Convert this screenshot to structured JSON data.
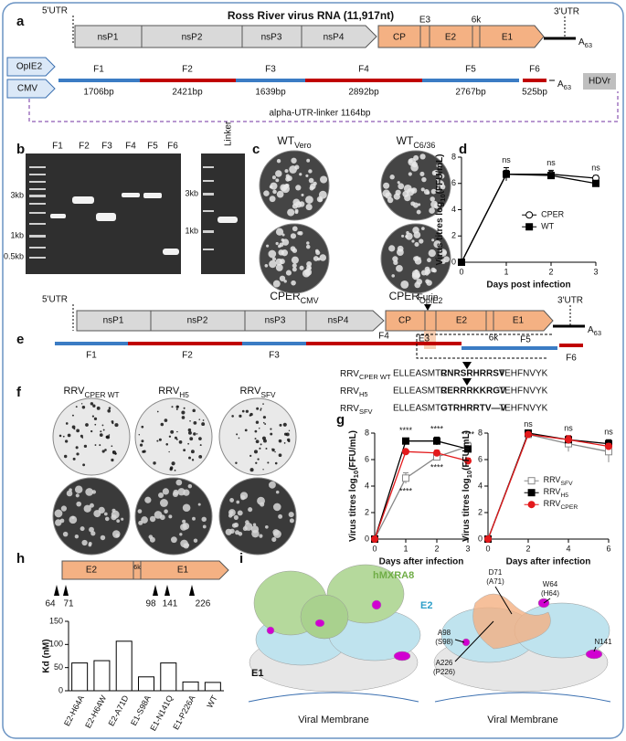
{
  "figure": {
    "panel_labels": [
      "a",
      "b",
      "c",
      "d",
      "e",
      "f",
      "g",
      "h",
      "i"
    ],
    "a": {
      "title": "Ross River virus RNA (11,917nt)",
      "utr5": "5'UTR",
      "utr3": "3'UTR",
      "genes": [
        "nsP1",
        "nsP2",
        "nsP3",
        "nsP4",
        "CP",
        "E3",
        "E2",
        "6k",
        "E1"
      ],
      "polyA": {
        "main": "A",
        "sub": "63"
      },
      "promoters": [
        "OpIE2",
        "CMV"
      ],
      "fragments": [
        {
          "name": "F1",
          "size": "1706bp"
        },
        {
          "name": "F2",
          "size": "2421bp"
        },
        {
          "name": "F3",
          "size": "1639bp"
        },
        {
          "name": "F4",
          "size": "2892bp"
        },
        {
          "name": "F5",
          "size": "2767bp"
        },
        {
          "name": "F6",
          "size": "525bp"
        }
      ],
      "ribozyme": "HDVr",
      "linker": "alpha-UTR-linker 1164bp"
    },
    "b": {
      "lanes": [
        "F1",
        "F2",
        "F3",
        "F4",
        "F5",
        "F6"
      ],
      "linker_lane": "Linker",
      "ladder_left": [
        "3kb",
        "1kb",
        "0.5kb"
      ],
      "ladder_right": [
        "3kb",
        "1kb"
      ]
    },
    "c": {
      "plates": [
        {
          "main": "WT",
          "sub": "Vero"
        },
        {
          "main": "WT",
          "sub": "C6/36"
        },
        {
          "main": "CPER",
          "sub": "CMV"
        },
        {
          "main": "CPER",
          "sub": "OpIE2"
        }
      ]
    },
    "e": {
      "utr5": "5'UTR",
      "utr3": "3'UTR",
      "genes": [
        "nsP1",
        "nsP2",
        "nsP3",
        "nsP4",
        "CP",
        "E3",
        "E2",
        "6k",
        "E1"
      ],
      "furin": "Furin",
      "polyA": {
        "main": "A",
        "sub": "63"
      },
      "fragments": [
        "F1",
        "F2",
        "F3",
        "F4",
        "F5",
        "F6"
      ],
      "sequences": [
        {
          "name": {
            "main": "RRV",
            "sub": "CPER WT"
          },
          "pre": "ELLEASMTC",
          "motif": "RNRSRHRRSV",
          "post": "TEHFNVYK"
        },
        {
          "name": {
            "main": "RRV",
            "sub": "H5"
          },
          "pre": "ELLEASMTC",
          "motif": "RERRRKKRGV",
          "post": "TEHFNVYK"
        },
        {
          "name": {
            "main": "RRV",
            "sub": "SFV"
          },
          "pre": "ELLEASMTC",
          "motif": "GTRHRRTV—V",
          "post": "TEHFNVYK"
        }
      ]
    },
    "f": {
      "plates": [
        {
          "main": "RRV",
          "sub": "CPER WT"
        },
        {
          "main": "RRV",
          "sub": "H5"
        },
        {
          "main": "RRV",
          "sub": "SFV"
        }
      ]
    },
    "h": {
      "domains": [
        "E2",
        "6k",
        "E1"
      ],
      "sites": [
        "64",
        "71",
        "98",
        "141",
        "226"
      ]
    },
    "i": {
      "receptor": "hMXRA8",
      "e2": "E2",
      "e1": "E1",
      "membrane": "Viral Membrane",
      "residues": [
        {
          "main": "D71",
          "alt": "(A71)"
        },
        {
          "main": "W64",
          "alt": "(H64)"
        },
        {
          "main": "A98",
          "alt": "(S98)"
        },
        {
          "main": "A226",
          "alt": "(P226)"
        },
        {
          "main": "N141"
        }
      ]
    }
  },
  "chart_data": [
    {
      "type": "line",
      "xlabel": "Days post infection",
      "ylabel": {
        "main": "Virus titres log",
        "sub": "10",
        "post": "(FFU/mL)"
      },
      "x": [
        0,
        1,
        2,
        3
      ],
      "xlim": [
        0,
        3
      ],
      "xticks": [
        0,
        1,
        2,
        3
      ],
      "ylim": [
        0,
        8
      ],
      "yticks": [
        0,
        2,
        4,
        6,
        8
      ],
      "legend": "right",
      "series": [
        {
          "name": "CPER",
          "color": "#000000",
          "marker": "open-circle",
          "values": [
            0,
            6.7,
            6.7,
            6.4
          ],
          "errors": [
            0,
            0.5,
            0.3,
            0.2
          ]
        },
        {
          "name": "WT",
          "color": "#000000",
          "marker": "square",
          "values": [
            0,
            6.7,
            6.6,
            6.0
          ],
          "errors": [
            0,
            0.3,
            0.2,
            0.1
          ]
        }
      ],
      "annotations": [
        {
          "x": 1,
          "text": "ns",
          "position": "above"
        },
        {
          "x": 2,
          "text": "ns",
          "position": "above"
        },
        {
          "x": 3,
          "text": "ns",
          "position": "above"
        }
      ]
    },
    {
      "type": "line",
      "xlabel": "Days after infection",
      "ylabel": {
        "main": "Virus titres log",
        "sub": "10",
        "post": "(FFU/mL)"
      },
      "x": [
        0,
        1,
        2,
        3
      ],
      "xlim": [
        0,
        3
      ],
      "xticks": [
        0,
        1,
        2,
        3
      ],
      "ylim": [
        0,
        8
      ],
      "yticks": [
        0,
        2,
        4,
        6,
        8
      ],
      "series": [
        {
          "color": "#888888",
          "marker": "open-square",
          "values": [
            0,
            4.6,
            6.2,
            7.0
          ],
          "errors": [
            0,
            0.4,
            0.2,
            0.3
          ]
        },
        {
          "color": "#000000",
          "marker": "square",
          "values": [
            0,
            7.4,
            7.4,
            6.8
          ],
          "errors": [
            0,
            0.2,
            0.3,
            0.2
          ]
        },
        {
          "color": "#e31a1c",
          "marker": "circle",
          "values": [
            0,
            6.6,
            6.5,
            5.9
          ],
          "errors": [
            0,
            0.1,
            0.2,
            0.2
          ]
        }
      ],
      "annotations": [
        {
          "x": 1,
          "text": "****",
          "position": "above"
        },
        {
          "x": 2,
          "text": "****",
          "position": "above"
        },
        {
          "x": 3,
          "text": "****",
          "position": "above"
        },
        {
          "x": 1,
          "text": "****",
          "position": "below"
        },
        {
          "x": 2,
          "text": "****",
          "position": "below"
        }
      ]
    },
    {
      "type": "line",
      "xlabel": "Days after infection",
      "ylabel": {
        "main": "Virus titres log",
        "sub": "10",
        "post": "(FFU/mL)"
      },
      "x": [
        0,
        2,
        4,
        6
      ],
      "xlim": [
        0,
        6
      ],
      "xticks": [
        0,
        2,
        4,
        6
      ],
      "ylim": [
        0,
        8
      ],
      "yticks": [
        0,
        2,
        4,
        6,
        8
      ],
      "legend": "center",
      "series": [
        {
          "name": {
            "main": "RRV",
            "sub": "SFV"
          },
          "color": "#888888",
          "marker": "open-square",
          "values": [
            0,
            7.9,
            7.2,
            6.6
          ],
          "errors": [
            0,
            0.1,
            0.6,
            0.8
          ]
        },
        {
          "name": {
            "main": "RRV",
            "sub": "H5"
          },
          "color": "#000000",
          "marker": "square",
          "values": [
            0,
            8.0,
            7.5,
            7.2
          ],
          "errors": [
            0,
            0.1,
            0.3,
            0.3
          ]
        },
        {
          "name": {
            "main": "RRV",
            "sub": "CPER"
          },
          "color": "#e31a1c",
          "marker": "circle",
          "values": [
            0,
            7.9,
            7.5,
            7.0
          ],
          "errors": [
            0,
            0.1,
            0.3,
            0.2
          ]
        }
      ],
      "annotations": [
        {
          "x": 2,
          "text": "ns",
          "position": "above"
        },
        {
          "x": 4,
          "text": "ns",
          "position": "above"
        },
        {
          "x": 6,
          "text": "ns",
          "position": "above"
        }
      ]
    },
    {
      "type": "bar",
      "ylabel": "Kd (nM)",
      "categories": [
        "E2-H64A",
        "E2-H64W",
        "E2-A71D",
        "E1-S98A",
        "E1-N141Q",
        "E1-P226A",
        "WT"
      ],
      "values": [
        60,
        65,
        107,
        30,
        60,
        19,
        18
      ],
      "color": "#ffffff",
      "ylim": [
        0,
        150
      ],
      "yticks": [
        0,
        50,
        100,
        150
      ]
    }
  ]
}
